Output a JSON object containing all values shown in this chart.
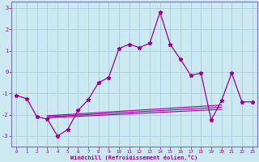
{
  "xlabel": "Windchill (Refroidissement éolien,°C)",
  "background_color": "#cce8f0",
  "grid_color": "#aaccdd",
  "line_color": "#990099",
  "spine_color": "#7777aa",
  "xlim": [
    -0.5,
    23.5
  ],
  "ylim": [
    -3.5,
    3.3
  ],
  "yticks": [
    -3,
    -2,
    -1,
    0,
    1,
    2,
    3
  ],
  "xticks": [
    0,
    1,
    2,
    3,
    4,
    5,
    6,
    7,
    8,
    9,
    10,
    11,
    12,
    13,
    14,
    15,
    16,
    17,
    18,
    19,
    20,
    21,
    22,
    23
  ],
  "main_line_x": [
    0,
    1,
    2,
    3,
    4,
    5,
    6,
    7,
    8,
    9,
    10,
    11,
    12,
    13,
    14,
    15,
    16,
    17,
    18,
    19,
    20,
    21,
    22,
    23
  ],
  "main_line_y": [
    -1.1,
    -1.25,
    -2.1,
    -2.2,
    -3.0,
    -2.7,
    -1.8,
    -1.3,
    -0.5,
    -0.25,
    1.1,
    1.3,
    1.15,
    1.35,
    2.8,
    1.3,
    0.6,
    -0.15,
    -0.05,
    -2.25,
    -1.35,
    -0.05,
    -1.4,
    -1.4
  ],
  "flat_line1_x": [
    3,
    20
  ],
  "flat_line1_y": [
    -2.05,
    -1.55
  ],
  "flat_line2_x": [
    3,
    20
  ],
  "flat_line2_y": [
    -2.1,
    -1.65
  ],
  "flat_line3_x": [
    3,
    20
  ],
  "flat_line3_y": [
    -2.15,
    -1.75
  ]
}
